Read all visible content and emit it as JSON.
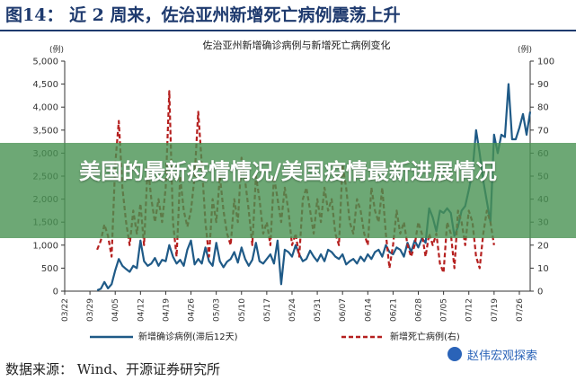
{
  "figure": {
    "title": "图14：  近 2 周来，佐治亚州新增死亡病例震荡上升"
  },
  "source": "数据来源：  Wind、开源证券研究所",
  "banner": {
    "text": "美国的最新疫情情况/美国疫情最新进展情况"
  },
  "watermark": {
    "text": "赵伟宏观探索"
  },
  "colors": {
    "cases": "#1f5a87",
    "deaths": "#b5201f",
    "title": "#1e3a6e",
    "banner": "#489252"
  },
  "chart_data": {
    "type": "line",
    "title": "佐治亚州新增确诊病例与新增死亡病例变化",
    "y_left_unit": "(例)",
    "y_right_unit": "(例)",
    "y_left_range": [
      0,
      5000
    ],
    "y_right_range": [
      0,
      100
    ],
    "y_left_ticks": [
      "0",
      "500",
      "1,000",
      "1,500",
      "2,000",
      "2,500",
      "3,000",
      "3,500",
      "4,000",
      "4,500",
      "5,000"
    ],
    "y_right_ticks": [
      "0",
      "10",
      "20",
      "30",
      "40",
      "50",
      "60",
      "70",
      "80",
      "90",
      "100"
    ],
    "x_ticks": [
      "03/22",
      "03/29",
      "04/05",
      "04/12",
      "04/19",
      "04/26",
      "05/03",
      "05/10",
      "05/17",
      "05/24",
      "05/31",
      "06/07",
      "06/14",
      "06/21",
      "06/28",
      "07/05",
      "07/12",
      "07/19",
      "07/26"
    ],
    "x_start": "03/22",
    "x_end": "07/29",
    "grid": false,
    "legend": "bottom",
    "series": [
      {
        "name": "新增确诊病例(滞后12天)",
        "axis": "left",
        "style": "solid",
        "values": [
          {
            "x": "03/31",
            "y": 20
          },
          {
            "x": "04/01",
            "y": 50
          },
          {
            "x": "04/02",
            "y": 200
          },
          {
            "x": "04/03",
            "y": 60
          },
          {
            "x": "04/04",
            "y": 150
          },
          {
            "x": "04/05",
            "y": 450
          },
          {
            "x": "04/06",
            "y": 700
          },
          {
            "x": "04/07",
            "y": 550
          },
          {
            "x": "04/08",
            "y": 480
          },
          {
            "x": "04/09",
            "y": 420
          },
          {
            "x": "04/10",
            "y": 550
          },
          {
            "x": "04/11",
            "y": 500
          },
          {
            "x": "04/12",
            "y": 1100
          },
          {
            "x": "04/13",
            "y": 650
          },
          {
            "x": "04/14",
            "y": 550
          },
          {
            "x": "04/15",
            "y": 600
          },
          {
            "x": "04/16",
            "y": 720
          },
          {
            "x": "04/17",
            "y": 550
          },
          {
            "x": "04/18",
            "y": 680
          },
          {
            "x": "04/19",
            "y": 650
          },
          {
            "x": "04/20",
            "y": 1000
          },
          {
            "x": "04/21",
            "y": 750
          },
          {
            "x": "04/22",
            "y": 600
          },
          {
            "x": "04/23",
            "y": 680
          },
          {
            "x": "04/24",
            "y": 550
          },
          {
            "x": "04/25",
            "y": 900
          },
          {
            "x": "04/26",
            "y": 1100
          },
          {
            "x": "04/27",
            "y": 580
          },
          {
            "x": "04/28",
            "y": 700
          },
          {
            "x": "04/29",
            "y": 600
          },
          {
            "x": "04/30",
            "y": 950
          },
          {
            "x": "05/01",
            "y": 650
          },
          {
            "x": "05/02",
            "y": 550
          },
          {
            "x": "05/03",
            "y": 1050
          },
          {
            "x": "05/04",
            "y": 650
          },
          {
            "x": "05/05",
            "y": 520
          },
          {
            "x": "05/06",
            "y": 640
          },
          {
            "x": "05/07",
            "y": 700
          },
          {
            "x": "05/08",
            "y": 850
          },
          {
            "x": "05/09",
            "y": 620
          },
          {
            "x": "05/10",
            "y": 950
          },
          {
            "x": "05/11",
            "y": 700
          },
          {
            "x": "05/12",
            "y": 550
          },
          {
            "x": "05/13",
            "y": 680
          },
          {
            "x": "05/14",
            "y": 1050
          },
          {
            "x": "05/15",
            "y": 650
          },
          {
            "x": "05/16",
            "y": 600
          },
          {
            "x": "05/17",
            "y": 700
          },
          {
            "x": "05/18",
            "y": 800
          },
          {
            "x": "05/19",
            "y": 600
          },
          {
            "x": "05/20",
            "y": 1100
          },
          {
            "x": "05/21",
            "y": 150
          },
          {
            "x": "05/22",
            "y": 900
          },
          {
            "x": "05/23",
            "y": 850
          },
          {
            "x": "05/24",
            "y": 750
          },
          {
            "x": "05/25",
            "y": 1000
          },
          {
            "x": "05/26",
            "y": 800
          },
          {
            "x": "05/27",
            "y": 650
          },
          {
            "x": "05/28",
            "y": 700
          },
          {
            "x": "05/29",
            "y": 880
          },
          {
            "x": "05/30",
            "y": 750
          },
          {
            "x": "05/31",
            "y": 650
          },
          {
            "x": "06/01",
            "y": 800
          },
          {
            "x": "06/02",
            "y": 650
          },
          {
            "x": "06/03",
            "y": 900
          },
          {
            "x": "06/04",
            "y": 850
          },
          {
            "x": "06/05",
            "y": 750
          },
          {
            "x": "06/06",
            "y": 700
          },
          {
            "x": "06/07",
            "y": 800
          },
          {
            "x": "06/08",
            "y": 580
          },
          {
            "x": "06/09",
            "y": 650
          },
          {
            "x": "06/10",
            "y": 700
          },
          {
            "x": "06/11",
            "y": 600
          },
          {
            "x": "06/12",
            "y": 750
          },
          {
            "x": "06/13",
            "y": 650
          },
          {
            "x": "06/14",
            "y": 800
          },
          {
            "x": "06/15",
            "y": 700
          },
          {
            "x": "06/16",
            "y": 850
          },
          {
            "x": "06/17",
            "y": 900
          },
          {
            "x": "06/18",
            "y": 750
          },
          {
            "x": "06/19",
            "y": 1000
          },
          {
            "x": "06/20",
            "y": 850
          },
          {
            "x": "06/21",
            "y": 800
          },
          {
            "x": "06/22",
            "y": 950
          },
          {
            "x": "06/23",
            "y": 900
          },
          {
            "x": "06/24",
            "y": 750
          },
          {
            "x": "06/25",
            "y": 1050
          },
          {
            "x": "06/26",
            "y": 850
          },
          {
            "x": "06/27",
            "y": 1100
          },
          {
            "x": "06/28",
            "y": 950
          },
          {
            "x": "06/29",
            "y": 1150
          },
          {
            "x": "06/30",
            "y": 1050
          },
          {
            "x": "07/01",
            "y": 1800
          },
          {
            "x": "07/02",
            "y": 1600
          },
          {
            "x": "07/03",
            "y": 1300
          },
          {
            "x": "07/04",
            "y": 1750
          },
          {
            "x": "07/05",
            "y": 1700
          },
          {
            "x": "07/06",
            "y": 1800
          },
          {
            "x": "07/07",
            "y": 1700
          },
          {
            "x": "07/08",
            "y": 1200
          },
          {
            "x": "07/09",
            "y": 1400
          },
          {
            "x": "07/10",
            "y": 1750
          },
          {
            "x": "07/11",
            "y": 1850
          },
          {
            "x": "07/12",
            "y": 2200
          },
          {
            "x": "07/13",
            "y": 2600
          },
          {
            "x": "07/14",
            "y": 3500
          },
          {
            "x": "07/15",
            "y": 3000
          },
          {
            "x": "07/16",
            "y": 2400
          },
          {
            "x": "07/17",
            "y": 1950
          },
          {
            "x": "07/18",
            "y": 1500
          },
          {
            "x": "07/19",
            "y": 3400
          },
          {
            "x": "07/20",
            "y": 3000
          },
          {
            "x": "07/21",
            "y": 3400
          },
          {
            "x": "07/22",
            "y": 3350
          },
          {
            "x": "07/23",
            "y": 4500
          },
          {
            "x": "07/24",
            "y": 3300
          },
          {
            "x": "07/25",
            "y": 3300
          },
          {
            "x": "07/26",
            "y": 3550
          },
          {
            "x": "07/27",
            "y": 3850
          },
          {
            "x": "07/28",
            "y": 3400
          },
          {
            "x": "07/29",
            "y": 3900
          }
        ]
      },
      {
        "name": "新增死亡病例(右)",
        "axis": "right",
        "style": "dashed",
        "values": [
          {
            "x": "03/31",
            "y": 18
          },
          {
            "x": "04/01",
            "y": 22
          },
          {
            "x": "04/02",
            "y": 29
          },
          {
            "x": "04/03",
            "y": 24
          },
          {
            "x": "04/04",
            "y": 15
          },
          {
            "x": "04/05",
            "y": 55
          },
          {
            "x": "04/06",
            "y": 74
          },
          {
            "x": "04/07",
            "y": 45
          },
          {
            "x": "04/08",
            "y": 30
          },
          {
            "x": "04/09",
            "y": 20
          },
          {
            "x": "04/10",
            "y": 35
          },
          {
            "x": "04/11",
            "y": 25
          },
          {
            "x": "04/12",
            "y": 38
          },
          {
            "x": "04/13",
            "y": 20
          },
          {
            "x": "04/14",
            "y": 55
          },
          {
            "x": "04/15",
            "y": 40
          },
          {
            "x": "04/16",
            "y": 30
          },
          {
            "x": "04/17",
            "y": 40
          },
          {
            "x": "04/18",
            "y": 30
          },
          {
            "x": "04/19",
            "y": 45
          },
          {
            "x": "04/20",
            "y": 87
          },
          {
            "x": "04/21",
            "y": 30
          },
          {
            "x": "04/22",
            "y": 15
          },
          {
            "x": "04/23",
            "y": 50
          },
          {
            "x": "04/24",
            "y": 35
          },
          {
            "x": "04/25",
            "y": 28
          },
          {
            "x": "04/26",
            "y": 35
          },
          {
            "x": "04/27",
            "y": 50
          },
          {
            "x": "04/28",
            "y": 78
          },
          {
            "x": "04/29",
            "y": 55
          },
          {
            "x": "04/30",
            "y": 30
          },
          {
            "x": "05/01",
            "y": 15
          },
          {
            "x": "05/02",
            "y": 40
          },
          {
            "x": "05/03",
            "y": 30
          },
          {
            "x": "05/04",
            "y": 50
          },
          {
            "x": "05/05",
            "y": 35
          },
          {
            "x": "05/06",
            "y": 25
          },
          {
            "x": "05/07",
            "y": 20
          },
          {
            "x": "05/08",
            "y": 40
          },
          {
            "x": "05/09",
            "y": 30
          },
          {
            "x": "05/10",
            "y": 58
          },
          {
            "x": "05/11",
            "y": 48
          },
          {
            "x": "05/12",
            "y": 35
          },
          {
            "x": "05/13",
            "y": 20
          },
          {
            "x": "05/14",
            "y": 50
          },
          {
            "x": "05/15",
            "y": 40
          },
          {
            "x": "05/16",
            "y": 25
          },
          {
            "x": "05/17",
            "y": 30
          },
          {
            "x": "05/18",
            "y": 20
          },
          {
            "x": "05/19",
            "y": 50
          },
          {
            "x": "05/20",
            "y": 40
          },
          {
            "x": "05/21",
            "y": 30
          },
          {
            "x": "05/22",
            "y": 45
          },
          {
            "x": "05/23",
            "y": 35
          },
          {
            "x": "05/24",
            "y": 20
          },
          {
            "x": "05/25",
            "y": 25
          },
          {
            "x": "05/26",
            "y": 15
          },
          {
            "x": "05/27",
            "y": 40
          },
          {
            "x": "05/28",
            "y": 45
          },
          {
            "x": "05/29",
            "y": 35
          },
          {
            "x": "05/30",
            "y": 25
          },
          {
            "x": "05/31",
            "y": 40
          },
          {
            "x": "06/01",
            "y": 30
          },
          {
            "x": "06/02",
            "y": 45
          },
          {
            "x": "06/03",
            "y": 35
          },
          {
            "x": "06/04",
            "y": 40
          },
          {
            "x": "06/05",
            "y": 25
          },
          {
            "x": "06/06",
            "y": 20
          },
          {
            "x": "06/07",
            "y": 55
          },
          {
            "x": "06/08",
            "y": 45
          },
          {
            "x": "06/09",
            "y": 30
          },
          {
            "x": "06/10",
            "y": 25
          },
          {
            "x": "06/11",
            "y": 40
          },
          {
            "x": "06/12",
            "y": 35
          },
          {
            "x": "06/13",
            "y": 25
          },
          {
            "x": "06/14",
            "y": 20
          },
          {
            "x": "06/15",
            "y": 45
          },
          {
            "x": "06/16",
            "y": 35
          },
          {
            "x": "06/17",
            "y": 30
          },
          {
            "x": "06/18",
            "y": 45
          },
          {
            "x": "06/19",
            "y": 25
          },
          {
            "x": "06/20",
            "y": 10
          },
          {
            "x": "06/21",
            "y": 20
          },
          {
            "x": "06/22",
            "y": 35
          },
          {
            "x": "06/23",
            "y": 25
          },
          {
            "x": "06/24",
            "y": 30
          },
          {
            "x": "06/25",
            "y": 20
          },
          {
            "x": "06/26",
            "y": 15
          },
          {
            "x": "06/27",
            "y": 20
          },
          {
            "x": "06/28",
            "y": 30
          },
          {
            "x": "06/29",
            "y": 25
          },
          {
            "x": "06/30",
            "y": 15
          },
          {
            "x": "07/01",
            "y": 25
          },
          {
            "x": "07/02",
            "y": 20
          },
          {
            "x": "07/03",
            "y": 25
          },
          {
            "x": "07/04",
            "y": 12
          },
          {
            "x": "07/05",
            "y": 8
          },
          {
            "x": "07/06",
            "y": 30
          },
          {
            "x": "07/07",
            "y": 25
          },
          {
            "x": "07/08",
            "y": 10
          },
          {
            "x": "07/09",
            "y": 35
          },
          {
            "x": "07/10",
            "y": 30
          },
          {
            "x": "07/11",
            "y": 20
          },
          {
            "x": "07/12",
            "y": 35
          },
          {
            "x": "07/13",
            "y": 30
          },
          {
            "x": "07/14",
            "y": 15
          },
          {
            "x": "07/15",
            "y": 10
          },
          {
            "x": "07/16",
            "y": 25
          },
          {
            "x": "07/17",
            "y": 35
          },
          {
            "x": "07/18",
            "y": 30
          },
          {
            "x": "07/19",
            "y": 20
          }
        ]
      }
    ]
  }
}
